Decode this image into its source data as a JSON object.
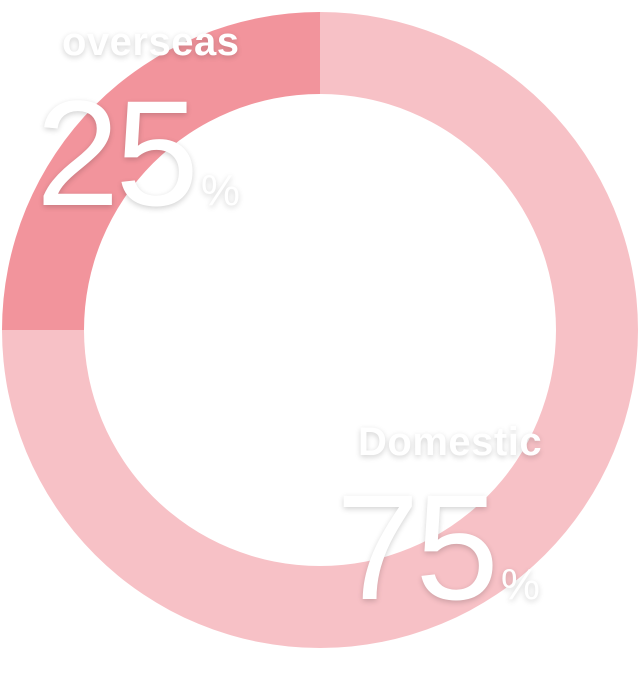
{
  "chart_data": {
    "type": "pie",
    "donut": true,
    "slices": [
      {
        "label": "overseas",
        "value": 25,
        "value_text": "25",
        "unit": "%",
        "color": "#f2949c"
      },
      {
        "label": "Domestic",
        "value": 75,
        "value_text": "75",
        "unit": "%",
        "color": "#f7c1c6"
      }
    ],
    "start_angle_deg": 0,
    "direction": "counterclockwise",
    "label_color": "#ffffff"
  }
}
